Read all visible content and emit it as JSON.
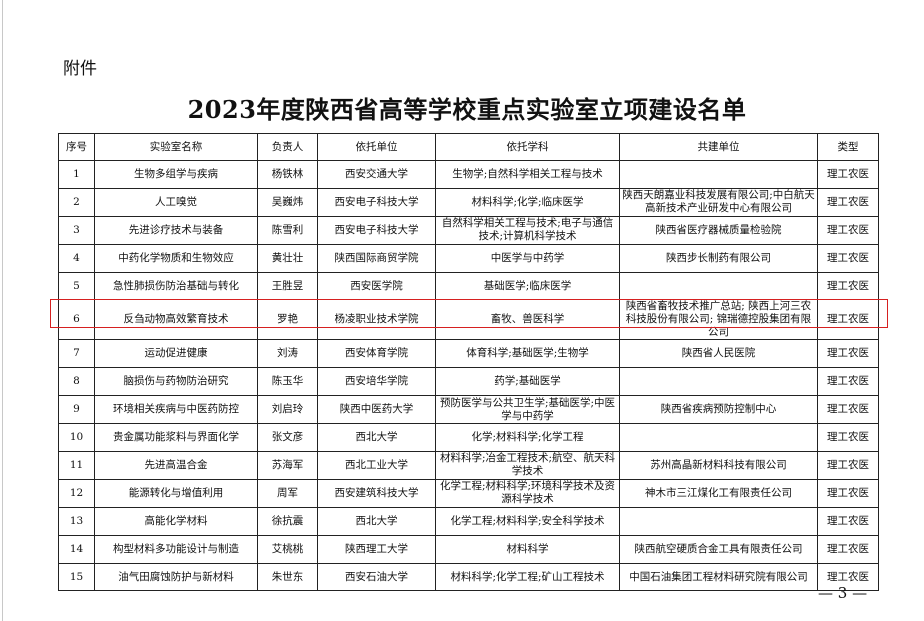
{
  "attachment_label": "附件",
  "title": "2023年度陕西省高等学校重点实验室立项建设名单",
  "headers": [
    "序号",
    "实验室名称",
    "负责人",
    "依托单位",
    "依托学科",
    "共建单位",
    "类型"
  ],
  "rows": [
    [
      "1",
      "生物多组学与疾病",
      "杨铁林",
      "西安交通大学",
      "生物学;自然科学相关工程与技术",
      "",
      "理工农医"
    ],
    [
      "2",
      "人工嗅觉",
      "吴巍炜",
      "西安电子科技大学",
      "材料科学;化学;临床医学",
      "陕西天朗嘉业科技发展有限公司;中白航天高新技术产业研发中心有限公司",
      "理工农医"
    ],
    [
      "3",
      "先进诊疗技术与装备",
      "陈雪利",
      "西安电子科技大学",
      "自然科学相关工程与技术;电子与通信技术;计算机科学技术",
      "陕西省医疗器械质量检验院",
      "理工农医"
    ],
    [
      "4",
      "中药化学物质和生物效应",
      "黄壮壮",
      "陕西国际商贸学院",
      "中医学与中药学",
      "陕西步长制药有限公司",
      "理工农医"
    ],
    [
      "5",
      "急性肺损伤防治基础与转化",
      "王胜昱",
      "西安医学院",
      "基础医学;临床医学",
      "",
      "理工农医"
    ],
    [
      "6",
      "反刍动物高效繁育技术",
      "罗艳",
      "杨凌职业技术学院",
      "畜牧、兽医科学",
      "陕西省畜牧技术推广总站; 陕西上河三农科技股份有限公司; 锦瑞德控股集团有限公司",
      "理工农医"
    ],
    [
      "7",
      "运动促进健康",
      "刘涛",
      "西安体育学院",
      "体育科学;基础医学;生物学",
      "陕西省人民医院",
      "理工农医"
    ],
    [
      "8",
      "脑损伤与药物防治研究",
      "陈玉华",
      "西安培华学院",
      "药学;基础医学",
      "",
      "理工农医"
    ],
    [
      "9",
      "环境相关疾病与中医药防控",
      "刘启玲",
      "陕西中医药大学",
      "预防医学与公共卫生学;基础医学;中医学与中药学",
      "陕西省疾病预防控制中心",
      "理工农医"
    ],
    [
      "10",
      "贵金属功能浆料与界面化学",
      "张文彦",
      "西北大学",
      "化学;材料科学;化学工程",
      "",
      "理工农医"
    ],
    [
      "11",
      "先进高温合金",
      "苏海军",
      "西北工业大学",
      "材料科学;冶金工程技术;航空、航天科学技术",
      "苏州高晶新材料科技有限公司",
      "理工农医"
    ],
    [
      "12",
      "能源转化与增值利用",
      "周军",
      "西安建筑科技大学",
      "化学工程;材料科学;环境科学技术及资源科学技术",
      "神木市三江煤化工有限责任公司",
      "理工农医"
    ],
    [
      "13",
      "高能化学材料",
      "徐抗震",
      "西北大学",
      "化学工程;材料科学;安全科学技术",
      "",
      "理工农医"
    ],
    [
      "14",
      "构型材料多功能设计与制造",
      "艾桃桃",
      "陕西理工大学",
      "材料科学",
      "陕西航空硬质合金工具有限责任公司",
      "理工农医"
    ],
    [
      "15",
      "油气田腐蚀防护与新材料",
      "朱世东",
      "西安石油大学",
      "材料科学;化学工程;矿山工程技术",
      "中国石油集团工程材料研究院有限公司",
      "理工农医"
    ]
  ],
  "highlighted_row": 6,
  "highlight_color": "#d62020",
  "page_number": "— 3 —"
}
